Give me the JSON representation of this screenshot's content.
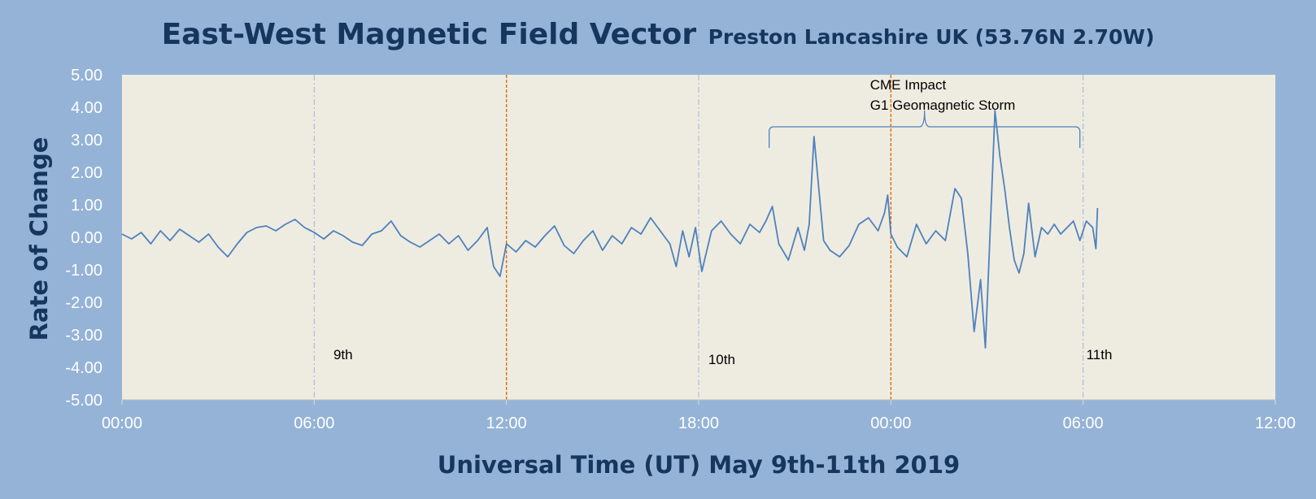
{
  "chart_data": {
    "type": "line",
    "title": "East-West Magnetic Field Vector",
    "subtitle": "Preston Lancashire UK (53.76N 2.70W)",
    "xlabel": "Universal Time (UT) May 9th-11th 2019",
    "ylabel": "Rate of Change",
    "xlim_hours": [
      0,
      36
    ],
    "ylim": [
      -5,
      5
    ],
    "x_ticks": [
      {
        "hour": 0,
        "label": "00:00"
      },
      {
        "hour": 6,
        "label": "06:00"
      },
      {
        "hour": 12,
        "label": "12:00"
      },
      {
        "hour": 18,
        "label": "18:00"
      },
      {
        "hour": 24,
        "label": "00:00"
      },
      {
        "hour": 30,
        "label": "06:00"
      },
      {
        "hour": 36,
        "label": "12:00"
      }
    ],
    "y_ticks": [
      {
        "value": 5,
        "label": "5.00"
      },
      {
        "value": 4,
        "label": "4.00"
      },
      {
        "value": 3,
        "label": "3.00"
      },
      {
        "value": 2,
        "label": "2.00"
      },
      {
        "value": 1,
        "label": "1.00"
      },
      {
        "value": 0,
        "label": "0.00"
      },
      {
        "value": -1,
        "label": "-1.00"
      },
      {
        "value": -2,
        "label": "-2.00"
      },
      {
        "value": -3,
        "label": "-3.00"
      },
      {
        "value": -4,
        "label": "-4.00"
      },
      {
        "value": -5,
        "label": "-5.00"
      }
    ],
    "vlines": [
      {
        "hour": 6,
        "style": "day",
        "color": "#9ab8d6"
      },
      {
        "hour": 12,
        "style": "noon",
        "color": "#e46c0a"
      },
      {
        "hour": 18,
        "style": "day",
        "color": "#9ab8d6"
      },
      {
        "hour": 24,
        "style": "noon",
        "color": "#e46c0a"
      },
      {
        "hour": 30,
        "style": "day",
        "color": "#9ab8d6"
      }
    ],
    "day_labels": [
      {
        "hour": 6.6,
        "value": -3.75,
        "text": "9th"
      },
      {
        "hour": 18.3,
        "value": -3.9,
        "text": "10th"
      },
      {
        "hour": 30.1,
        "value": -3.75,
        "text": "11th"
      }
    ],
    "annotation": {
      "lines": [
        "CME Impact",
        "G1 Geomagnetic Storm"
      ],
      "hour": 23.35,
      "bracket_hours": [
        20.2,
        29.9
      ],
      "bracket_value": 3.4
    },
    "series": [
      {
        "color": "#4f81bd",
        "x": [
          0,
          0.3,
          0.6,
          0.9,
          1.2,
          1.5,
          1.8,
          2.1,
          2.4,
          2.7,
          3.0,
          3.3,
          3.6,
          3.9,
          4.2,
          4.5,
          4.8,
          5.1,
          5.4,
          5.7,
          6.0,
          6.3,
          6.6,
          6.9,
          7.2,
          7.5,
          7.8,
          8.1,
          8.4,
          8.7,
          9.0,
          9.3,
          9.6,
          9.9,
          10.2,
          10.5,
          10.8,
          11.1,
          11.4,
          11.6,
          11.8,
          12.0,
          12.3,
          12.6,
          12.9,
          13.2,
          13.5,
          13.8,
          14.1,
          14.4,
          14.7,
          15.0,
          15.3,
          15.6,
          15.9,
          16.2,
          16.5,
          16.8,
          17.1,
          17.3,
          17.5,
          17.7,
          17.9,
          18.1,
          18.4,
          18.7,
          19.0,
          19.3,
          19.6,
          19.9,
          20.1,
          20.3,
          20.5,
          20.8,
          21.1,
          21.3,
          21.45,
          21.6,
          21.75,
          21.9,
          22.1,
          22.4,
          22.7,
          23.0,
          23.3,
          23.6,
          23.8,
          23.9,
          24.0,
          24.2,
          24.5,
          24.8,
          25.1,
          25.4,
          25.7,
          26.0,
          26.2,
          26.4,
          26.6,
          26.8,
          26.95,
          27.1,
          27.25,
          27.4,
          27.55,
          27.7,
          27.85,
          28.0,
          28.15,
          28.3,
          28.5,
          28.7,
          28.9,
          29.1,
          29.3,
          29.5,
          29.7,
          29.9,
          30.1,
          30.3,
          30.4,
          30.45
        ],
        "y": [
          0.1,
          -0.05,
          0.15,
          -0.2,
          0.2,
          -0.1,
          0.25,
          0.05,
          -0.15,
          0.1,
          -0.3,
          -0.6,
          -0.2,
          0.15,
          0.3,
          0.35,
          0.2,
          0.4,
          0.55,
          0.3,
          0.15,
          -0.05,
          0.2,
          0.05,
          -0.15,
          -0.25,
          0.1,
          0.2,
          0.5,
          0.05,
          -0.15,
          -0.3,
          -0.1,
          0.1,
          -0.2,
          0.05,
          -0.4,
          -0.1,
          0.3,
          -0.9,
          -1.2,
          -0.2,
          -0.45,
          -0.1,
          -0.3,
          0.05,
          0.35,
          -0.25,
          -0.5,
          -0.1,
          0.2,
          -0.4,
          0.05,
          -0.2,
          0.3,
          0.1,
          0.6,
          0.2,
          -0.2,
          -0.9,
          0.2,
          -0.6,
          0.3,
          -1.05,
          0.2,
          0.5,
          0.1,
          -0.2,
          0.4,
          0.15,
          0.5,
          0.95,
          -0.2,
          -0.7,
          0.3,
          -0.4,
          0.4,
          3.1,
          1.5,
          -0.1,
          -0.4,
          -0.6,
          -0.25,
          0.4,
          0.6,
          0.2,
          0.75,
          1.3,
          0.1,
          -0.3,
          -0.6,
          0.4,
          -0.2,
          0.2,
          -0.1,
          1.5,
          1.2,
          -0.5,
          -2.9,
          -1.3,
          -3.4,
          0.2,
          3.9,
          2.5,
          1.5,
          0.3,
          -0.7,
          -1.1,
          -0.5,
          1.05,
          -0.6,
          0.3,
          0.1,
          0.4,
          0.1,
          0.3,
          0.5,
          -0.1,
          0.5,
          0.3,
          -0.35,
          0.9
        ]
      }
    ]
  }
}
